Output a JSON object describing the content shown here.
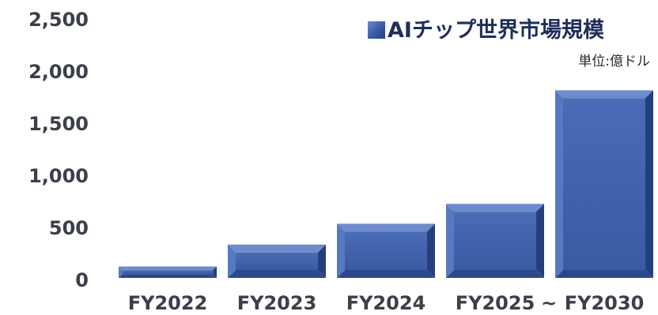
{
  "chart_data": {
    "type": "bar",
    "categories": [
      "FY2022",
      "FY2023",
      "FY2024",
      "FY2025",
      "FY2030"
    ],
    "x_separator": "~",
    "values": [
      110,
      320,
      520,
      710,
      1800
    ],
    "series": [
      {
        "name": "AIチップ世界市場規模",
        "values": [
          110,
          320,
          520,
          710,
          1800
        ]
      }
    ],
    "ylim": [
      0,
      2500
    ],
    "yticks": [
      "0",
      "500",
      "1,000",
      "1,500",
      "2,000",
      "2,500"
    ],
    "unit_label": "単位:億ドル",
    "legend_position": "top-right",
    "grid": false,
    "colors": {
      "bar": "#3c5ea8",
      "bar_dark": "#243f7c",
      "bar_light": "#6e8ccc",
      "text": "#3b3f4a"
    }
  }
}
